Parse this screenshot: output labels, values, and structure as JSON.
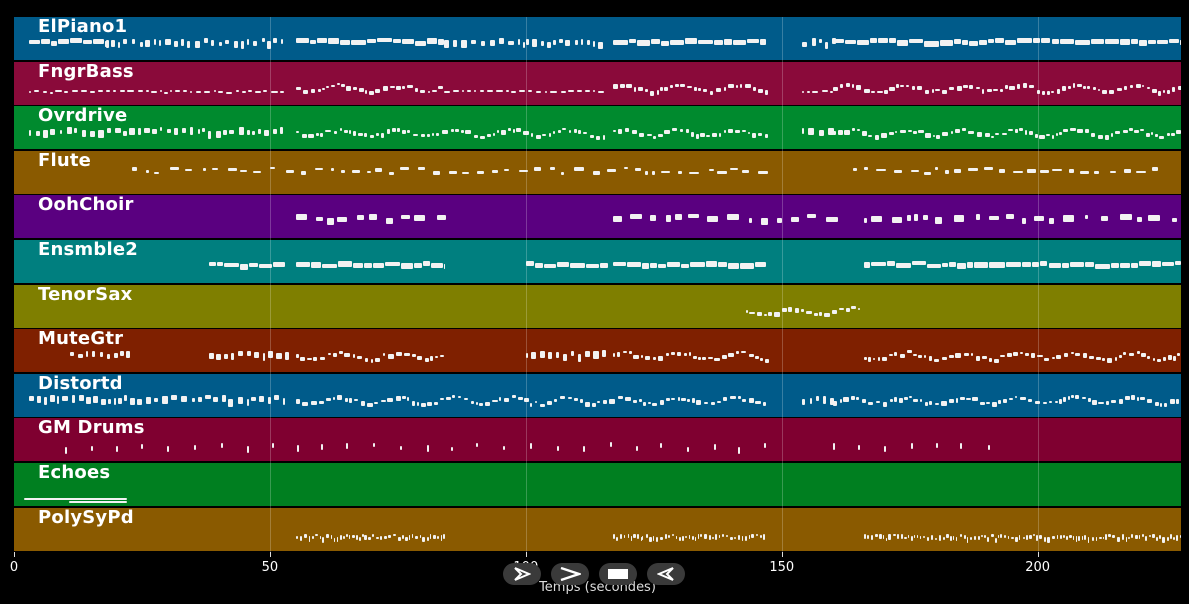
{
  "axis": {
    "ticks": [
      "0",
      "50",
      "100",
      "150",
      "200"
    ],
    "tick_values": [
      0,
      50,
      100,
      150,
      200
    ],
    "max": 228,
    "xlabel": "Temps (secondes)"
  },
  "tracks": [
    {
      "name": "ElPiano1",
      "color": "#005b8a",
      "segments": [
        [
          3,
          18,
          "long"
        ],
        [
          18,
          53,
          "dense"
        ],
        [
          55,
          84,
          "long"
        ],
        [
          84,
          100,
          "dense"
        ],
        [
          100,
          115,
          "dense"
        ],
        [
          117,
          147,
          "long"
        ],
        [
          154,
          160,
          "dense"
        ],
        [
          160,
          228,
          "long"
        ]
      ]
    },
    {
      "name": "FngrBass",
      "color": "#8a0a3a",
      "segments": [
        [
          3,
          8,
          "thin"
        ],
        [
          8,
          53,
          "thin"
        ],
        [
          55,
          84,
          "wavy"
        ],
        [
          84,
          115,
          "thin"
        ],
        [
          117,
          147,
          "wavy"
        ],
        [
          154,
          160,
          "thin"
        ],
        [
          160,
          228,
          "wavy"
        ]
      ]
    },
    {
      "name": "Ovrdrive",
      "color": "#008a2e",
      "segments": [
        [
          3,
          53,
          "dense"
        ],
        [
          55,
          115,
          "wavy"
        ],
        [
          117,
          147,
          "wavy"
        ],
        [
          154,
          160,
          "dense"
        ],
        [
          160,
          228,
          "wavy"
        ]
      ]
    },
    {
      "name": "Flute",
      "color": "#8a5a00",
      "segments": [
        [
          23,
          84,
          "sparse"
        ],
        [
          85,
          146,
          "sparse"
        ],
        [
          164,
          225,
          "sparse"
        ]
      ]
    },
    {
      "name": "OohChoir",
      "color": "#5a0080",
      "segments": [
        [
          55,
          84,
          "blocks"
        ],
        [
          117,
          160,
          "blocks"
        ],
        [
          166,
          228,
          "blocks"
        ]
      ]
    },
    {
      "name": "Ensmble2",
      "color": "#007f7f",
      "segments": [
        [
          38,
          53,
          "long"
        ],
        [
          55,
          84,
          "long"
        ],
        [
          100,
          116,
          "long"
        ],
        [
          117,
          147,
          "long"
        ],
        [
          166,
          228,
          "long"
        ]
      ]
    },
    {
      "name": "TenorSax",
      "color": "#7f7f00",
      "segments": [
        [
          143,
          165,
          "wavy"
        ]
      ]
    },
    {
      "name": "MuteGtr",
      "color": "#7f2000",
      "segments": [
        [
          11,
          22,
          "dense"
        ],
        [
          38,
          53,
          "dense"
        ],
        [
          55,
          84,
          "wavy"
        ],
        [
          100,
          116,
          "dense"
        ],
        [
          117,
          147,
          "wavy"
        ],
        [
          166,
          228,
          "wavy"
        ]
      ]
    },
    {
      "name": "Distortd",
      "color": "#005b8a",
      "segments": [
        [
          3,
          53,
          "dense"
        ],
        [
          55,
          147,
          "wavy"
        ],
        [
          154,
          160,
          "dense"
        ],
        [
          160,
          228,
          "wavy"
        ]
      ]
    },
    {
      "name": "GM Drums",
      "color": "#7f0030",
      "segments": [
        [
          10,
          150,
          "ticks"
        ],
        [
          160,
          195,
          "ticks"
        ]
      ]
    },
    {
      "name": "Echoes",
      "color": "#007f20",
      "segments": [
        [
          2,
          22,
          "line"
        ]
      ]
    },
    {
      "name": "PolySyPd",
      "color": "#8a5a00",
      "segments": [
        [
          55,
          84,
          "fuzzy"
        ],
        [
          117,
          147,
          "fuzzy"
        ],
        [
          166,
          228,
          "fuzzy"
        ]
      ]
    }
  ],
  "controls": [
    {
      "name": "play-control",
      "icon": "play-icon"
    },
    {
      "name": "forward-control",
      "icon": "chevron-right-icon"
    },
    {
      "name": "stop-control",
      "icon": "stop-icon"
    },
    {
      "name": "rewind-control",
      "icon": "rewind-icon"
    }
  ]
}
